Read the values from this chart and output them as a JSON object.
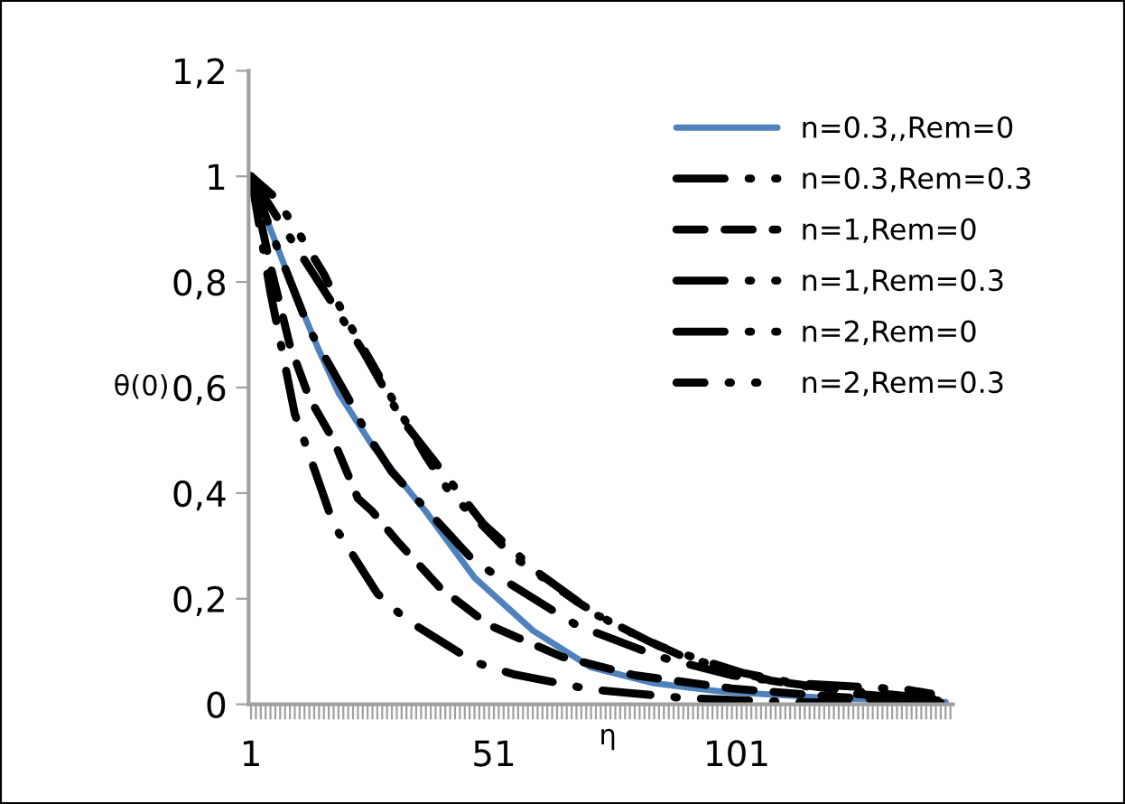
{
  "chart_data": {
    "type": "line",
    "xlabel": "η",
    "ylabel": "θ(0)",
    "xlim": [
      0.5,
      145.5
    ],
    "xticks": [
      1,
      51,
      101
    ],
    "ylim": [
      0,
      1.2
    ],
    "yticks": [
      0,
      {
        "value": 0.2,
        "label": "0,2"
      },
      {
        "value": 0.4,
        "label": "0,4"
      },
      {
        "value": 0.6,
        "label": "0,6"
      },
      {
        "value": 0.8,
        "label": "0,8"
      },
      1,
      {
        "value": 1.2,
        "label": "1,2"
      }
    ],
    "grid": false,
    "legend": "top right",
    "marker": "none",
    "series": [
      {
        "name": "n=0.3,,Rem=0",
        "color": "#4f81bd",
        "line_style": "solid",
        "x": [
          1,
          5,
          10,
          15,
          19,
          26,
          37,
          47,
          59,
          71,
          84,
          98,
          120,
          144
        ],
        "values": [
          1,
          0.9,
          0.78,
          0.67,
          0.59,
          0.49,
          0.365,
          0.24,
          0.14,
          0.07,
          0.04,
          0.024,
          0.012,
          0.004
        ]
      },
      {
        "name": "n=0.3,Rem=0.3",
        "color": "#000000",
        "line_style": "dashdot",
        "x": [
          1,
          7,
          13,
          21,
          25,
          30,
          42,
          47,
          54,
          68,
          85,
          100,
          120,
          142
        ],
        "values": [
          1,
          0.85,
          0.71,
          0.58,
          0.51,
          0.44,
          0.32,
          0.27,
          0.23,
          0.15,
          0.09,
          0.055,
          0.03,
          0.01
        ]
      },
      {
        "name": "n=1,Rem=0",
        "color": "#000000",
        "line_style": "dashed",
        "x": [
          1,
          5,
          9,
          13,
          18,
          23,
          26,
          31,
          40,
          50,
          65,
          80,
          100,
          120,
          143
        ],
        "values": [
          1,
          0.83,
          0.68,
          0.58,
          0.5,
          0.39,
          0.365,
          0.31,
          0.22,
          0.15,
          0.09,
          0.055,
          0.03,
          0.015,
          0.003
        ]
      },
      {
        "name": "n=1,Rem=0.3",
        "color": "#000000",
        "line_style": "dashdot",
        "x": [
          1,
          10,
          24,
          32,
          49,
          60,
          72,
          85,
          102,
          113,
          136,
          141
        ],
        "values": [
          1,
          0.87,
          0.67,
          0.54,
          0.34,
          0.25,
          0.17,
          0.11,
          0.06,
          0.04,
          0.028,
          0.02
        ]
      },
      {
        "name": "n=2,Rem=0",
        "color": "#000000",
        "line_style": "dashdot",
        "x": [
          1,
          5,
          10,
          15,
          18,
          27,
          33,
          47,
          55,
          71,
          90,
          110,
          139
        ],
        "values": [
          1,
          0.78,
          0.55,
          0.42,
          0.34,
          0.21,
          0.16,
          0.08,
          0.057,
          0.028,
          0.012,
          0.005,
          0
        ]
      },
      {
        "name": "n=2,Rem=0.3",
        "color": "#000000",
        "line_style": "dashdotdot",
        "x": [
          1,
          6,
          11,
          16,
          20,
          30,
          37,
          42,
          55,
          68,
          76,
          90,
          108,
          125,
          144
        ],
        "values": [
          1,
          0.96,
          0.89,
          0.815,
          0.74,
          0.58,
          0.47,
          0.4,
          0.28,
          0.195,
          0.15,
          0.09,
          0.045,
          0.02,
          0.006
        ]
      }
    ]
  }
}
